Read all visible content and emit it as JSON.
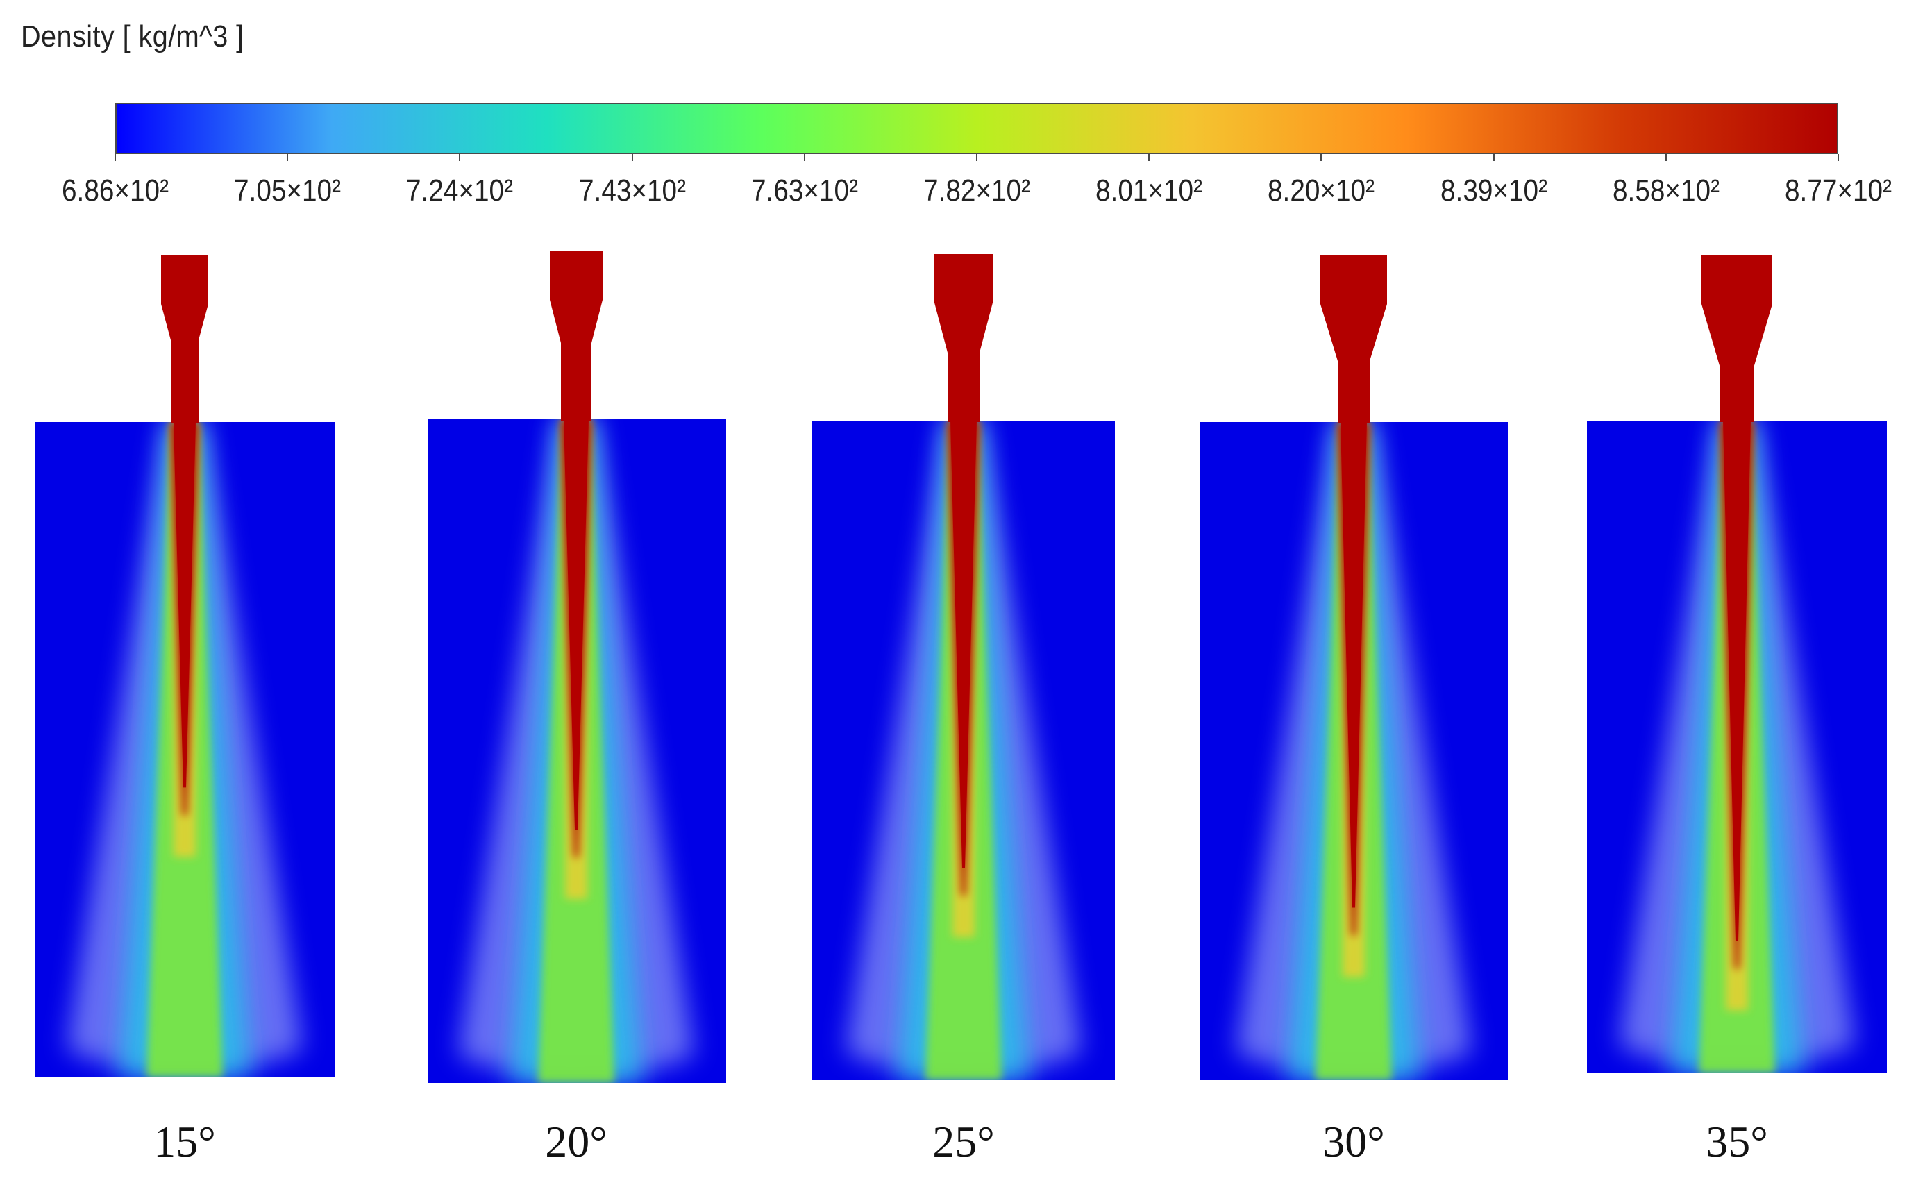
{
  "legend": {
    "title": "Density [ kg/m^3 ]",
    "tick_labels": [
      "6.86×10²",
      "7.05×10²",
      "7.24×10²",
      "7.43×10²",
      "7.63×10²",
      "7.82×10²",
      "8.01×10²",
      "8.20×10²",
      "8.39×10²",
      "8.58×10²",
      "8.77×10²"
    ],
    "colormap": [
      "#0000ff",
      "#3fa9f5",
      "#1fe0c0",
      "#5cff5c",
      "#b8f020",
      "#f4c430",
      "#ff8c1a",
      "#d33a05",
      "#b00000"
    ]
  },
  "colors": {
    "domain_background": "#0000e6",
    "jet_core": "#b30000"
  },
  "cases": [
    {
      "label": "15°",
      "angle_deg": 15
    },
    {
      "label": "20°",
      "angle_deg": 20
    },
    {
      "label": "25°",
      "angle_deg": 25
    },
    {
      "label": "30°",
      "angle_deg": 30
    },
    {
      "label": "35°",
      "angle_deg": 35
    }
  ]
}
